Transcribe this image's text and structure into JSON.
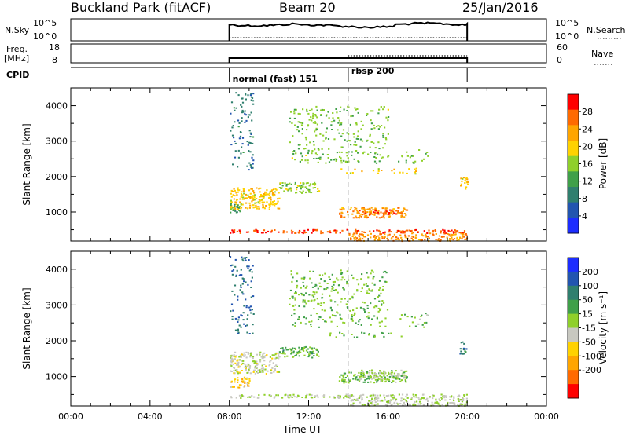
{
  "header": {
    "station": "Buckland Park (fitACF)",
    "beam": "Beam 20",
    "date": "25/Jan/2016"
  },
  "strip_nsky": {
    "left_label": "N.Sky",
    "right_label": "N.Search",
    "left_ticks": [
      "10^5",
      "10^0"
    ],
    "right_ticks": [
      "10^5",
      "10^0"
    ]
  },
  "strip_freq": {
    "left_label_top": "Freq.",
    "left_label_bottom": "[MHz]",
    "right_label": "Nave",
    "left_ticks": [
      "18",
      "8"
    ],
    "right_ticks": [
      "60",
      "0"
    ]
  },
  "cpid": {
    "label": "CPID",
    "segments": [
      {
        "name": "normal (fast) 151",
        "start_hour": 8,
        "end_hour": 14
      },
      {
        "name": "rbsp 200",
        "start_hour": 14,
        "end_hour": 20
      }
    ]
  },
  "time_axis": {
    "label": "Time UT",
    "range_hours": [
      0,
      24
    ],
    "ticks": [
      "00:00",
      "04:00",
      "08:00",
      "12:00",
      "16:00",
      "20:00",
      "00:00"
    ],
    "data_start_hour": 8,
    "data_end_hour": 20,
    "mode_change_hour": 14
  },
  "chart_data": [
    {
      "type": "heatmap",
      "ylabel": "Slant Range [km]",
      "ylim": [
        180,
        4500
      ],
      "yticks": [
        "1000",
        "2000",
        "3000",
        "4000"
      ],
      "yticks_values": [
        1000,
        2000,
        3000,
        4000
      ],
      "colorbar": {
        "label": "Power [dB]",
        "range": [
          0,
          32
        ],
        "ticks": [
          "4",
          "8",
          "12",
          "16",
          "20",
          "24",
          "28"
        ],
        "colors": [
          "#1c2dff",
          "#2255b0",
          "#2f7f6e",
          "#3fa049",
          "#8fd02a",
          "#ffd200",
          "#ffa500",
          "#ff6a00",
          "#ff0000"
        ]
      },
      "regions": [
        {
          "t": [
            8.0,
            10.5
          ],
          "r": [
            1100,
            1700
          ],
          "value": 20
        },
        {
          "t": [
            8.0,
            8.6
          ],
          "r": [
            1000,
            1300
          ],
          "value": 12
        },
        {
          "t": [
            10.5,
            12.5
          ],
          "r": [
            1550,
            1850
          ],
          "value": 16
        },
        {
          "t": [
            13.5,
            17.0
          ],
          "r": [
            850,
            1150
          ],
          "value": 24
        },
        {
          "t": [
            14.5,
            16.5
          ],
          "r": [
            950,
            1080
          ],
          "value": 28
        },
        {
          "t": [
            8.0,
            20.0
          ],
          "r": [
            420,
            520
          ],
          "value": 28
        },
        {
          "t": [
            14.0,
            20.0
          ],
          "r": [
            200,
            420
          ],
          "value": 24
        },
        {
          "t": [
            13.0,
            17.5
          ],
          "r": [
            2100,
            2250
          ],
          "value": 20
        },
        {
          "t": [
            16.5,
            18.0
          ],
          "r": [
            2400,
            2800
          ],
          "value": 14
        },
        {
          "t": [
            19.6,
            20.0
          ],
          "r": [
            1650,
            2000
          ],
          "value": 20
        },
        {
          "t": [
            8.0,
            9.2
          ],
          "r": [
            2200,
            4400
          ],
          "value": 8
        },
        {
          "t": [
            11.0,
            16.0
          ],
          "r": [
            2400,
            4000
          ],
          "value": 15
        }
      ]
    },
    {
      "type": "heatmap",
      "ylabel": "Slant Range [km]",
      "ylim": [
        180,
        4500
      ],
      "yticks": [
        "1000",
        "2000",
        "3000",
        "4000"
      ],
      "yticks_values": [
        1000,
        2000,
        3000,
        4000
      ],
      "colorbar": {
        "label": "Velocity [m s⁻¹]",
        "range": [
          -250,
          250
        ],
        "ticks": [
          "200",
          "100",
          "50",
          "15",
          "-15",
          "-50",
          "-100",
          "-200"
        ],
        "colors": [
          "#1c2dff",
          "#2255b0",
          "#2f7f6e",
          "#3fa049",
          "#8fd02a",
          "#c8c8c0",
          "#ffd200",
          "#ffa500",
          "#ff6a00",
          "#ff0000"
        ]
      },
      "regions": [
        {
          "t": [
            8.0,
            10.5
          ],
          "r": [
            1100,
            1700
          ],
          "value": -20
        },
        {
          "t": [
            8.0,
            9.0
          ],
          "r": [
            700,
            1000
          ],
          "value": -80
        },
        {
          "t": [
            10.5,
            12.5
          ],
          "r": [
            1550,
            1850
          ],
          "value": 60
        },
        {
          "t": [
            13.5,
            17.0
          ],
          "r": [
            850,
            1150
          ],
          "value": 40
        },
        {
          "t": [
            14.5,
            17.0
          ],
          "r": [
            950,
            1200
          ],
          "value": 10
        },
        {
          "t": [
            8.0,
            20.0
          ],
          "r": [
            420,
            520
          ],
          "value": 5
        },
        {
          "t": [
            14.0,
            20.0
          ],
          "r": [
            200,
            420
          ],
          "value": -5
        },
        {
          "t": [
            13.0,
            17.5
          ],
          "r": [
            2100,
            2250
          ],
          "value": 40
        },
        {
          "t": [
            16.5,
            18.0
          ],
          "r": [
            2400,
            2800
          ],
          "value": 30
        },
        {
          "t": [
            19.6,
            20.0
          ],
          "r": [
            1650,
            2000
          ],
          "value": 120
        },
        {
          "t": [
            8.0,
            9.2
          ],
          "r": [
            2200,
            4400
          ],
          "value": 150
        },
        {
          "t": [
            11.0,
            16.0
          ],
          "r": [
            2400,
            4000
          ],
          "value": 50
        }
      ]
    }
  ],
  "colors": {
    "mode_line": "#aaaaaa",
    "axes": "#000000"
  }
}
